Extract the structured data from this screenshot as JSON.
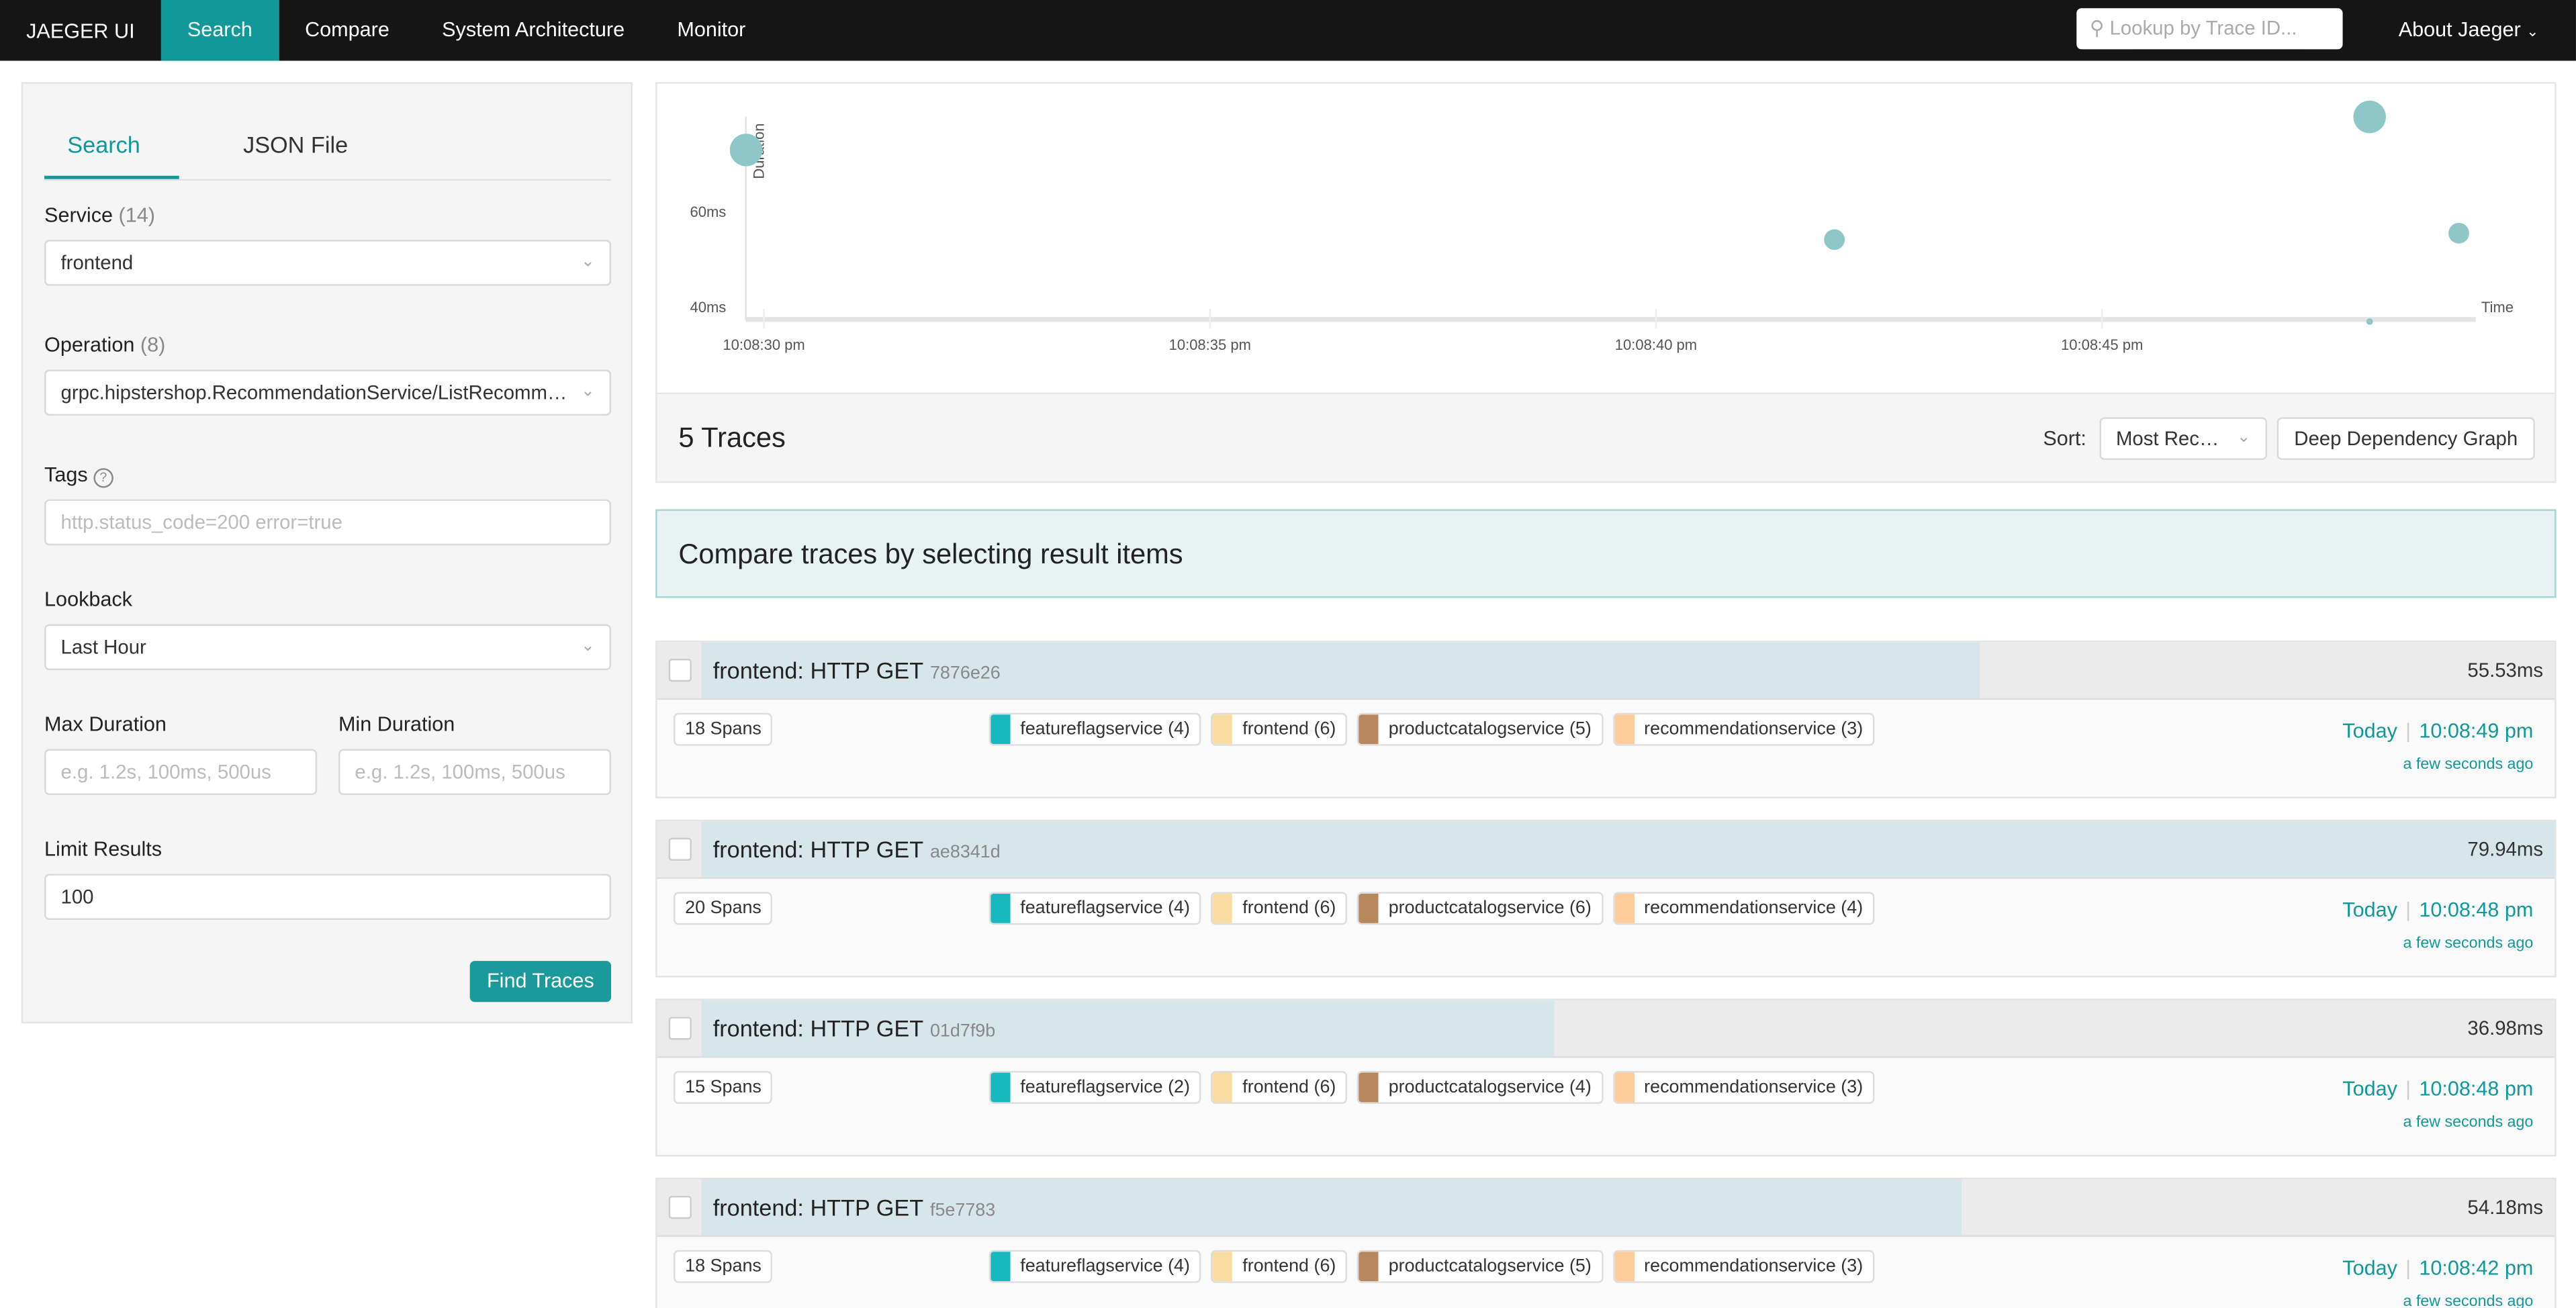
{
  "nav": {
    "brand": "JAEGER UI",
    "items": [
      "Search",
      "Compare",
      "System Architecture",
      "Monitor"
    ],
    "active": 0,
    "lookup_placeholder": "Lookup by Trace ID...",
    "about": "About Jaeger"
  },
  "sidebar": {
    "tabs": [
      "Search",
      "JSON File"
    ],
    "service_label": "Service",
    "service_count": "(14)",
    "service_value": "frontend",
    "operation_label": "Operation",
    "operation_count": "(8)",
    "operation_value": "grpc.hipstershop.RecommendationService/ListRecommendations",
    "tags_label": "Tags",
    "tags_placeholder": "http.status_code=200 error=true",
    "lookback_label": "Lookback",
    "lookback_value": "Last Hour",
    "max_label": "Max Duration",
    "max_placeholder": "e.g. 1.2s, 100ms, 500us",
    "min_label": "Min Duration",
    "min_placeholder": "e.g. 1.2s, 100ms, 500us",
    "limit_label": "Limit Results",
    "limit_value": "100",
    "find": "Find Traces"
  },
  "chart_data": {
    "type": "scatter",
    "ylabel": "Duration",
    "xlabel": "Time",
    "yticks": [
      "40ms",
      "60ms"
    ],
    "xticks": [
      "10:08:30 pm",
      "10:08:35 pm",
      "10:08:40 pm",
      "10:08:45 pm"
    ],
    "points": [
      {
        "time": "10:08:29.8",
        "duration_ms": 73,
        "spans": 20
      },
      {
        "time": "10:08:42",
        "duration_ms": 54.18,
        "spans": 18
      },
      {
        "time": "10:08:48",
        "duration_ms": 79.94,
        "spans": 20
      },
      {
        "time": "10:08:48",
        "duration_ms": 36.98,
        "spans": 15
      },
      {
        "time": "10:08:49",
        "duration_ms": 55.53,
        "spans": 18
      }
    ],
    "color": "#8fc7c9"
  },
  "results": {
    "count": "5 Traces",
    "sort_label": "Sort:",
    "sort_value": "Most Recent",
    "ddg": "Deep Dependency Graph",
    "compare": "Compare traces by selecting result items"
  },
  "traces": [
    {
      "name": "frontend: HTTP GET",
      "id": "7876e26",
      "duration": "55.53ms",
      "fill": 0.69,
      "spans": "18 Spans",
      "services": [
        "featureflagservice (4)",
        "frontend (6)",
        "productcatalogservice (5)",
        "recommendationservice (3)"
      ],
      "day": "Today",
      "time": "10:08:49 pm",
      "ago": "a few seconds ago"
    },
    {
      "name": "frontend: HTTP GET",
      "id": "ae8341d",
      "duration": "79.94ms",
      "fill": 1.0,
      "spans": "20 Spans",
      "services": [
        "featureflagservice (4)",
        "frontend (6)",
        "productcatalogservice (6)",
        "recommendationservice (4)"
      ],
      "day": "Today",
      "time": "10:08:48 pm",
      "ago": "a few seconds ago"
    },
    {
      "name": "frontend: HTTP GET",
      "id": "01d7f9b",
      "duration": "36.98ms",
      "fill": 0.46,
      "spans": "15 Spans",
      "services": [
        "featureflagservice (2)",
        "frontend (6)",
        "productcatalogservice (4)",
        "recommendationservice (3)"
      ],
      "day": "Today",
      "time": "10:08:48 pm",
      "ago": "a few seconds ago"
    },
    {
      "name": "frontend: HTTP GET",
      "id": "f5e7783",
      "duration": "54.18ms",
      "fill": 0.68,
      "spans": "18 Spans",
      "services": [
        "featureflagservice (4)",
        "frontend (6)",
        "productcatalogservice (5)",
        "recommendationservice (3)"
      ],
      "day": "Today",
      "time": "10:08:42 pm",
      "ago": "a few seconds ago"
    }
  ],
  "service_colors": [
    "#17b8be",
    "#f8dca1",
    "#b7885e",
    "#ffcb99"
  ]
}
